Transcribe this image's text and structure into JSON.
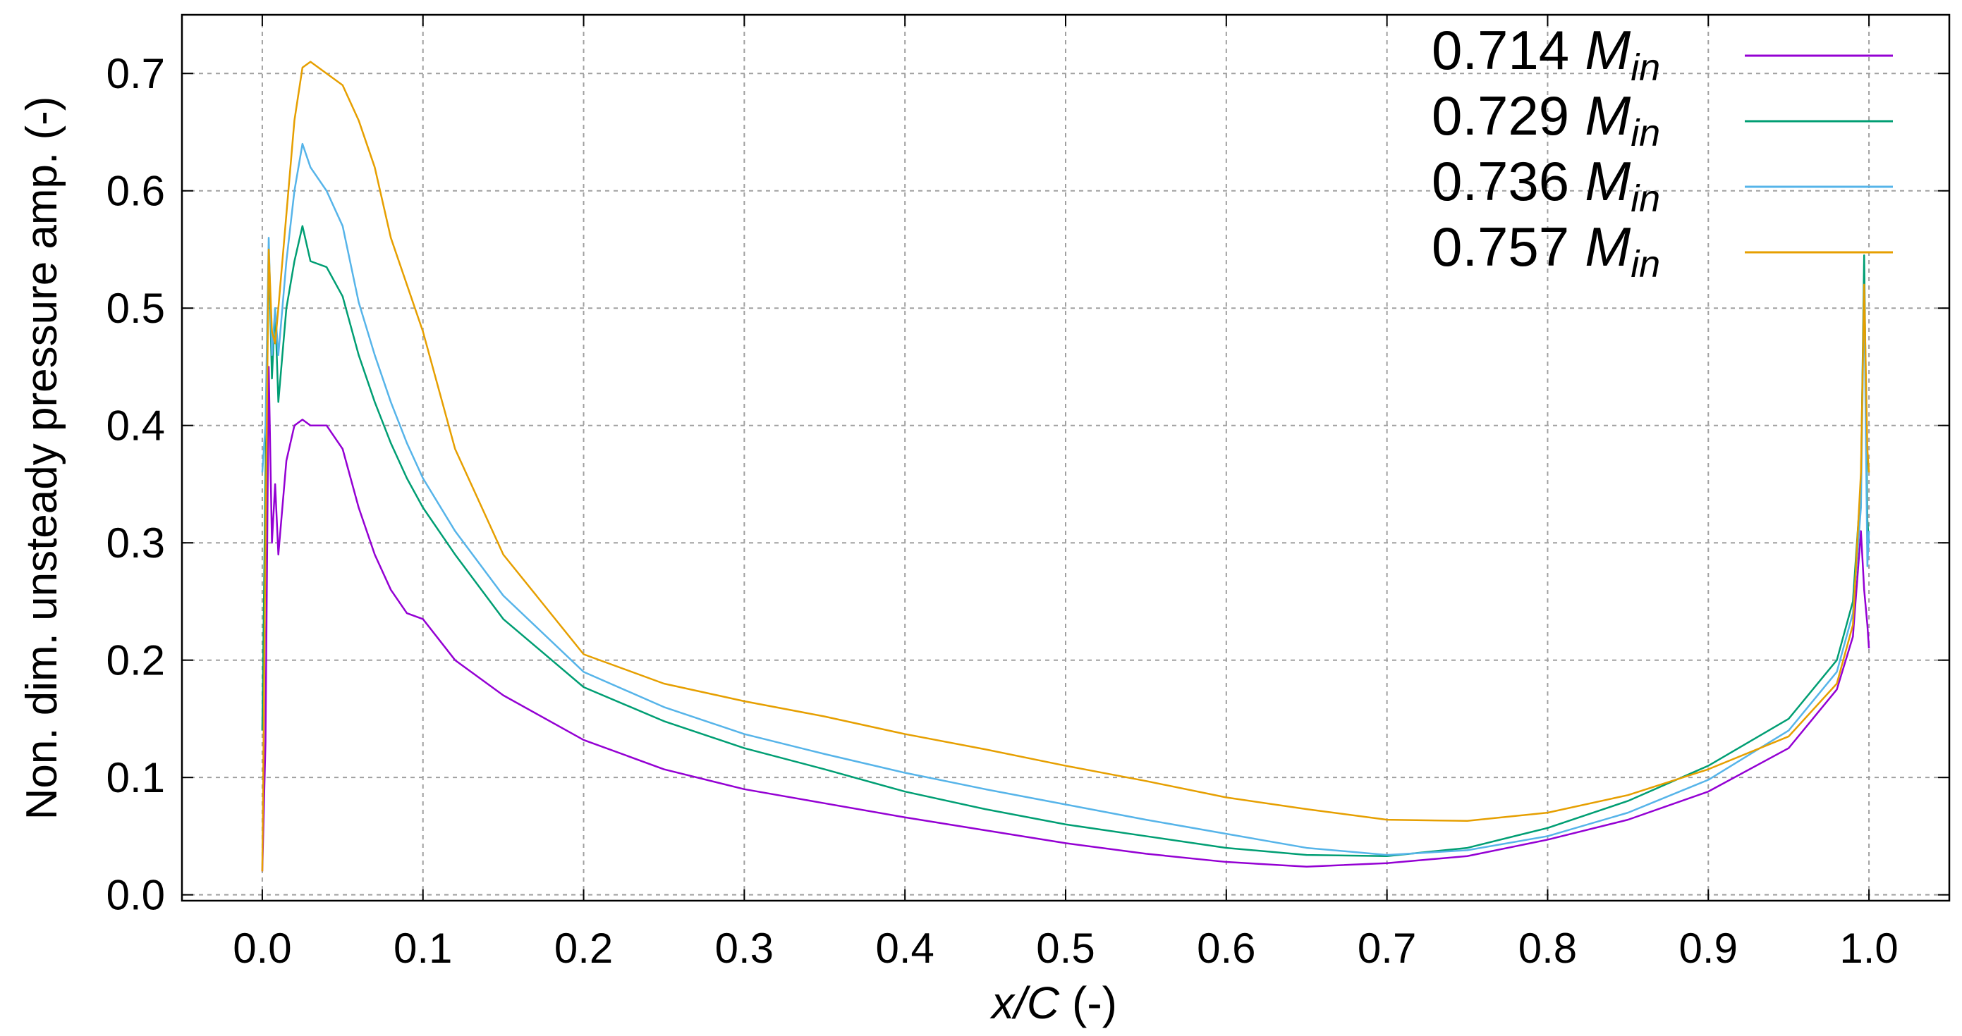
{
  "chart_data": {
    "type": "line",
    "y_label": "Non. dim. unsteady pressure amp. (-)",
    "x_label": "x/C",
    "x_label_unit": "(-)",
    "legend_unit": "M",
    "legend_unit_sub": "in",
    "legend_position": "top-right",
    "grid": true,
    "xlim": [
      -0.05,
      1.05
    ],
    "ylim": [
      -0.005,
      0.75
    ],
    "xticks": [
      {
        "value": 0,
        "label": "0.0"
      },
      0.1,
      0.2,
      0.3,
      0.4,
      0.5,
      0.6,
      0.7,
      0.8,
      0.9,
      {
        "value": 1,
        "label": "1.0"
      }
    ],
    "yticks": [
      {
        "value": 0,
        "label": "0.0"
      },
      0.1,
      0.2,
      0.3,
      0.4,
      0.5,
      0.6,
      0.7
    ],
    "x": [
      0,
      0.002,
      0.004,
      0.006,
      0.008,
      0.01,
      0.015,
      0.02,
      0.025,
      0.03,
      0.04,
      0.05,
      0.06,
      0.07,
      0.08,
      0.09,
      0.1,
      0.12,
      0.15,
      0.2,
      0.25,
      0.3,
      0.35,
      0.4,
      0.45,
      0.5,
      0.55,
      0.6,
      0.65,
      0.7,
      0.75,
      0.8,
      0.85,
      0.9,
      0.95,
      0.98,
      0.99,
      0.995,
      0.997,
      0.999,
      1.0
    ],
    "series": [
      {
        "name": "0.714",
        "color": "#9400d3",
        "values": [
          0.02,
          0.13,
          0.45,
          0.3,
          0.35,
          0.29,
          0.37,
          0.4,
          0.405,
          0.4,
          0.4,
          0.38,
          0.33,
          0.29,
          0.26,
          0.24,
          0.235,
          0.2,
          0.17,
          0.132,
          0.107,
          0.09,
          0.078,
          0.066,
          0.055,
          0.044,
          0.035,
          0.028,
          0.024,
          0.027,
          0.033,
          0.047,
          0.064,
          0.088,
          0.125,
          0.175,
          0.22,
          0.31,
          0.26,
          0.23,
          0.21
        ]
      },
      {
        "name": "0.729",
        "color": "#009e73",
        "values": [
          0.14,
          0.36,
          0.55,
          0.44,
          0.5,
          0.42,
          0.5,
          0.54,
          0.57,
          0.54,
          0.535,
          0.51,
          0.46,
          0.42,
          0.385,
          0.355,
          0.33,
          0.29,
          0.235,
          0.177,
          0.148,
          0.125,
          0.107,
          0.088,
          0.073,
          0.06,
          0.05,
          0.04,
          0.034,
          0.033,
          0.04,
          0.057,
          0.08,
          0.11,
          0.15,
          0.2,
          0.25,
          0.35,
          0.545,
          0.32,
          0.3
        ]
      },
      {
        "name": "0.736",
        "color": "#56b4e9",
        "values": [
          0.36,
          0.4,
          0.56,
          0.46,
          0.5,
          0.46,
          0.54,
          0.6,
          0.64,
          0.62,
          0.6,
          0.57,
          0.505,
          0.46,
          0.42,
          0.385,
          0.355,
          0.31,
          0.255,
          0.19,
          0.16,
          0.137,
          0.12,
          0.104,
          0.09,
          0.077,
          0.064,
          0.052,
          0.04,
          0.034,
          0.038,
          0.05,
          0.07,
          0.098,
          0.14,
          0.19,
          0.24,
          0.33,
          0.52,
          0.28,
          0.31
        ]
      },
      {
        "name": "0.757",
        "color": "#e69f00",
        "values": [
          0.02,
          0.3,
          0.55,
          0.48,
          0.47,
          0.5,
          0.58,
          0.66,
          0.705,
          0.71,
          0.7,
          0.69,
          0.66,
          0.62,
          0.56,
          0.52,
          0.48,
          0.38,
          0.29,
          0.205,
          0.18,
          0.165,
          0.152,
          0.137,
          0.124,
          0.11,
          0.097,
          0.083,
          0.073,
          0.064,
          0.063,
          0.07,
          0.085,
          0.107,
          0.135,
          0.18,
          0.23,
          0.36,
          0.52,
          0.38,
          0.36
        ]
      }
    ]
  }
}
